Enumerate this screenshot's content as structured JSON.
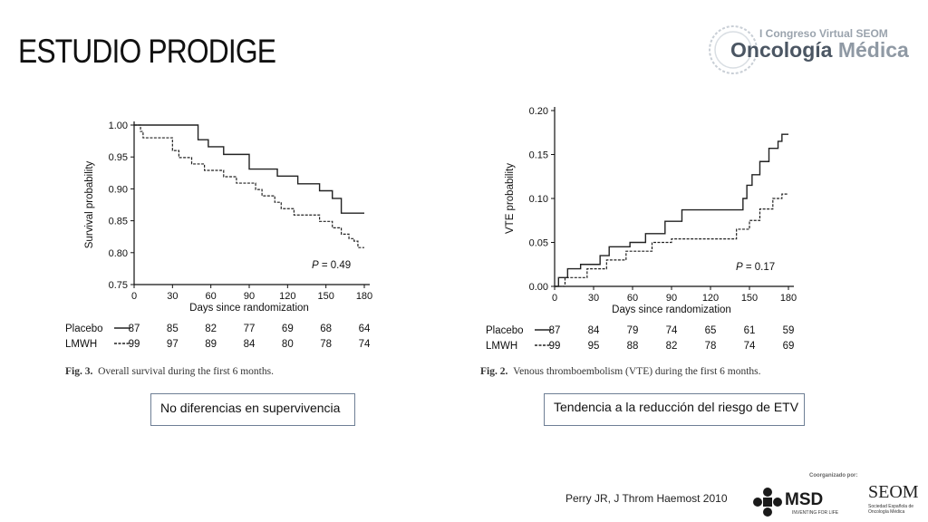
{
  "slide": {
    "title": "ESTUDIO PRODIGE"
  },
  "logo": {
    "congress_line": "I Congreso Virtual SEOM",
    "main_line_1": "Oncología",
    "main_line_2": "Médica"
  },
  "footer": {
    "reference": "Perry JR, J Throm Haemost 2010",
    "cosponsor_label": "Coorganizado por:",
    "msd_name": "MSD",
    "msd_tagline": "INVENTING FOR LIFE",
    "seom_name": "SEOM",
    "seom_subtitle": "Sociedad Española de Oncología Médica"
  },
  "notes": {
    "left": "No diferencias en supervivencia",
    "right": "Tendencia a la reducción del riesgo de ETV"
  },
  "captions": {
    "left_fig": "Fig. 3.",
    "left_text": "Overall survival during the first 6 months.",
    "right_fig": "Fig. 2.",
    "right_text": "Venous thromboembolism (VTE) during the first 6 months."
  },
  "colors": {
    "text": "#111111",
    "box_border": "#6e7f95"
  },
  "chart_data": [
    {
      "type": "line",
      "step": true,
      "xlabel": "Days since randomization",
      "ylabel": "Survival probability",
      "xlim": [
        0,
        180
      ],
      "ylim": [
        0.75,
        1.0
      ],
      "xticks": [
        0,
        30,
        60,
        90,
        120,
        150,
        180
      ],
      "yticks": [
        "0.75",
        "0.80",
        "0.85",
        "0.90",
        "0.95",
        "1.00"
      ],
      "annotation_italic": "P",
      "annotation_rest": " = 0.49",
      "series": [
        {
          "name": "Placebo",
          "style": "solid",
          "x": [
            0,
            50,
            58,
            70,
            90,
            112,
            128,
            145,
            155,
            162,
            180
          ],
          "y": [
            1.0,
            0.977,
            0.966,
            0.954,
            0.931,
            0.92,
            0.908,
            0.897,
            0.885,
            0.862,
            0.862
          ],
          "at_risk": [
            "87",
            "85",
            "82",
            "77",
            "69",
            "68",
            "64"
          ]
        },
        {
          "name": "LMWH",
          "style": "dashed",
          "x": [
            0,
            5,
            7,
            25,
            30,
            35,
            45,
            55,
            70,
            80,
            95,
            100,
            110,
            115,
            125,
            145,
            155,
            162,
            168,
            172,
            175,
            180
          ],
          "y": [
            1.0,
            0.99,
            0.98,
            0.98,
            0.96,
            0.949,
            0.939,
            0.929,
            0.919,
            0.909,
            0.899,
            0.889,
            0.879,
            0.869,
            0.859,
            0.849,
            0.839,
            0.829,
            0.822,
            0.818,
            0.808,
            0.808
          ],
          "at_risk": [
            "99",
            "97",
            "89",
            "84",
            "80",
            "78",
            "74"
          ]
        }
      ]
    },
    {
      "type": "line",
      "step": true,
      "xlabel": "Days since randomization",
      "ylabel": "VTE probability",
      "xlim": [
        0,
        180
      ],
      "ylim": [
        0.0,
        0.2
      ],
      "xticks": [
        0,
        30,
        60,
        90,
        120,
        150,
        180
      ],
      "yticks": [
        "0.00",
        "0.05",
        "0.10",
        "0.15",
        "0.20"
      ],
      "annotation_italic": "P",
      "annotation_rest": " = 0.17",
      "series": [
        {
          "name": "Placebo",
          "style": "solid",
          "x": [
            0,
            3,
            10,
            20,
            35,
            42,
            58,
            70,
            85,
            98,
            112,
            128,
            145,
            148,
            152,
            158,
            165,
            172,
            175,
            180
          ],
          "y": [
            0.0,
            0.01,
            0.02,
            0.025,
            0.035,
            0.045,
            0.05,
            0.06,
            0.074,
            0.087,
            0.087,
            0.087,
            0.1,
            0.115,
            0.127,
            0.142,
            0.157,
            0.165,
            0.173,
            0.173
          ],
          "at_risk": [
            "87",
            "84",
            "79",
            "74",
            "65",
            "61",
            "59"
          ]
        },
        {
          "name": "LMWH",
          "style": "dashed",
          "x": [
            0,
            8,
            25,
            40,
            55,
            75,
            90,
            105,
            118,
            125,
            140,
            150,
            158,
            168,
            175,
            180
          ],
          "y": [
            0.0,
            0.01,
            0.02,
            0.03,
            0.04,
            0.05,
            0.054,
            0.054,
            0.054,
            0.054,
            0.065,
            0.075,
            0.088,
            0.1,
            0.105,
            0.105
          ],
          "at_risk": [
            "99",
            "95",
            "88",
            "82",
            "78",
            "74",
            "69"
          ]
        }
      ]
    }
  ]
}
